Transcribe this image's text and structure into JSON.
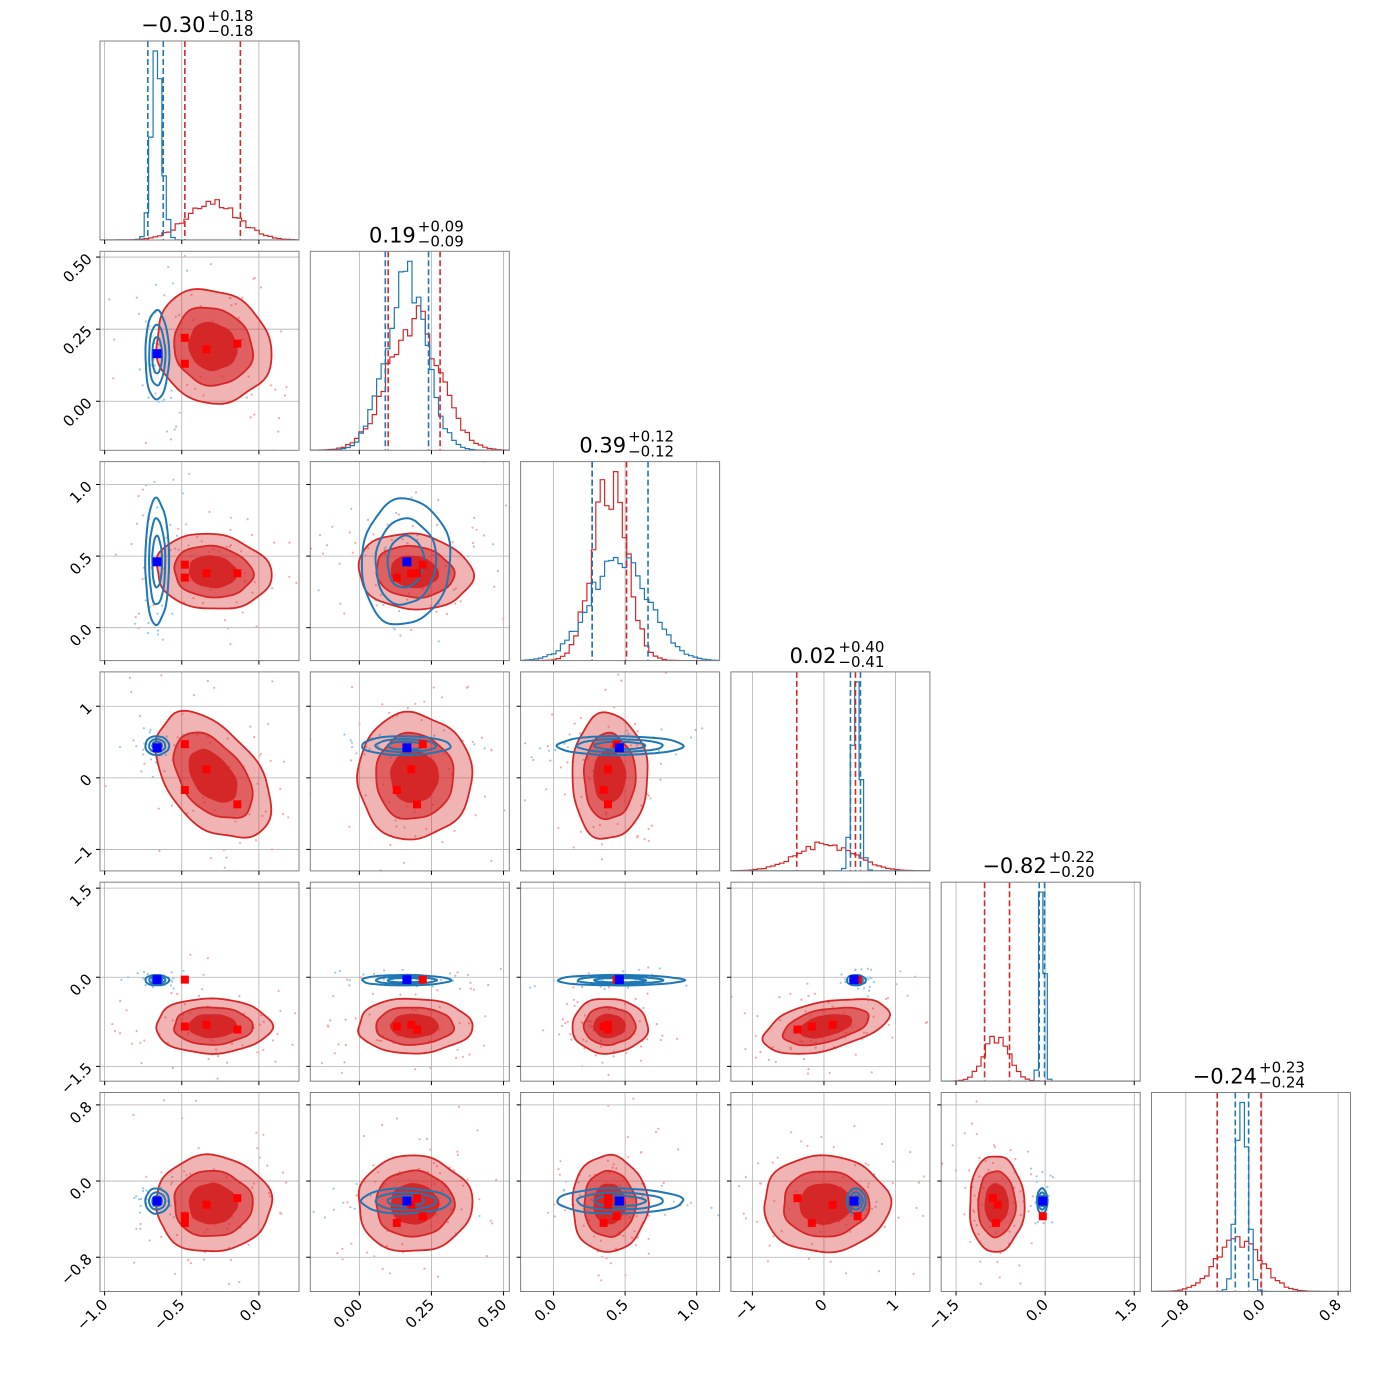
{
  "chart_data": {
    "type": "corner",
    "grid": true,
    "colors": {
      "red": "#d62728",
      "blue": "#1f77b4",
      "marker_red": "#ff0000",
      "marker_blue": "#0000ff",
      "grid": "#b0b0b0",
      "scatter_red": "#f4a8a8",
      "scatter_blue": "#9cc7e8"
    },
    "parameters": [
      {
        "range": [
          -1.03,
          0.26
        ],
        "ticks": [
          {
            "v": -1.0,
            "l": "−1.0"
          },
          {
            "v": -0.5,
            "l": "−0.5"
          },
          {
            "v": 0.0,
            "l": "0.0"
          }
        ],
        "title": {
          "main": "−0.30",
          "sup": "+0.18",
          "sub": "−0.18"
        },
        "red": {
          "mu": -0.3,
          "sd": 0.17
        },
        "blue": {
          "mu": -0.66,
          "sd": 0.035
        },
        "red_quantiles": [
          -0.48,
          -0.12
        ],
        "blue_quantiles": [
          -0.72,
          -0.62
        ],
        "red_markers": [
          -0.48,
          -0.48,
          -0.34,
          -0.14
        ],
        "blue_marker": -0.66
      },
      {
        "range": [
          -0.17,
          0.52
        ],
        "ticks": [
          {
            "v": 0.0,
            "l": "0.00"
          },
          {
            "v": 0.25,
            "l": "0.25"
          },
          {
            "v": 0.5,
            "l": "0.50"
          }
        ],
        "title": {
          "main": "0.19",
          "sup": "+0.09",
          "sub": "−0.09"
        },
        "red": {
          "mu": 0.19,
          "sd": 0.09
        },
        "blue": {
          "mu": 0.16,
          "sd": 0.07
        },
        "red_quantiles": [
          0.1,
          0.28
        ],
        "blue_quantiles": [
          0.09,
          0.24
        ],
        "red_markers": [
          0.22,
          0.13,
          0.18,
          0.2
        ],
        "blue_marker": 0.165
      },
      {
        "range": [
          -0.23,
          1.16
        ],
        "ticks": [
          {
            "v": 0.0,
            "l": "0.0"
          },
          {
            "v": 0.5,
            "l": "0.5"
          },
          {
            "v": 1.0,
            "l": "1.0"
          }
        ],
        "title": {
          "main": "0.39",
          "sup": "+0.12",
          "sub": "−0.12"
        },
        "red": {
          "mu": 0.39,
          "sd": 0.12
        },
        "blue": {
          "mu": 0.46,
          "sd": 0.2
        },
        "red_quantiles": [
          0.27,
          0.51
        ],
        "blue_quantiles": [
          0.27,
          0.66
        ],
        "red_markers": [
          0.44,
          0.35,
          0.38,
          0.38
        ],
        "blue_marker": 0.46
      },
      {
        "range": [
          -1.3,
          1.48
        ],
        "ticks": [
          {
            "v": -1,
            "l": "−1"
          },
          {
            "v": 0,
            "l": "0"
          },
          {
            "v": 1,
            "l": "1"
          }
        ],
        "title": {
          "main": "0.02",
          "sup": "+0.40",
          "sub": "−0.41"
        },
        "red": {
          "mu": 0.02,
          "sd": 0.4
        },
        "blue": {
          "mu": 0.45,
          "sd": 0.06
        },
        "red_quantiles": [
          -0.38,
          0.44
        ],
        "blue_quantiles": [
          0.37,
          0.51
        ],
        "red_markers": [
          0.47,
          -0.17,
          0.12,
          -0.37
        ],
        "blue_marker": 0.42
      },
      {
        "range": [
          -1.75,
          1.6
        ],
        "ticks": [
          {
            "v": -1.5,
            "l": "−1.5"
          },
          {
            "v": 0.0,
            "l": "0.0"
          },
          {
            "v": 1.5,
            "l": "1.5"
          }
        ],
        "title": {
          "main": "−0.82",
          "sup": "+0.22",
          "sub": "−0.20"
        },
        "red": {
          "mu": -0.82,
          "sd": 0.21
        },
        "blue": {
          "mu": -0.05,
          "sd": 0.04
        },
        "red_quantiles": [
          -1.02,
          -0.6
        ],
        "blue_quantiles": [
          -0.1,
          -0.01
        ],
        "red_markers": [
          -0.04,
          -0.83,
          -0.8,
          -0.88
        ],
        "blue_marker": -0.04
      },
      {
        "range": [
          -1.16,
          0.93
        ],
        "ticks": [
          {
            "v": -0.8,
            "l": "−0.8"
          },
          {
            "v": 0.0,
            "l": "0.0"
          },
          {
            "v": 0.8,
            "l": "0.8"
          }
        ],
        "title": {
          "main": "−0.24",
          "sup": "+0.23",
          "sub": "−0.24"
        },
        "red": {
          "mu": -0.24,
          "sd": 0.23
        },
        "blue": {
          "mu": -0.21,
          "sd": 0.06
        },
        "red_quantiles": [
          -0.47,
          -0.01
        ],
        "blue_quantiles": [
          -0.28,
          -0.14
        ],
        "red_markers": [
          -0.37,
          -0.44,
          -0.25,
          -0.18
        ],
        "blue_marker": -0.21
      }
    ]
  }
}
